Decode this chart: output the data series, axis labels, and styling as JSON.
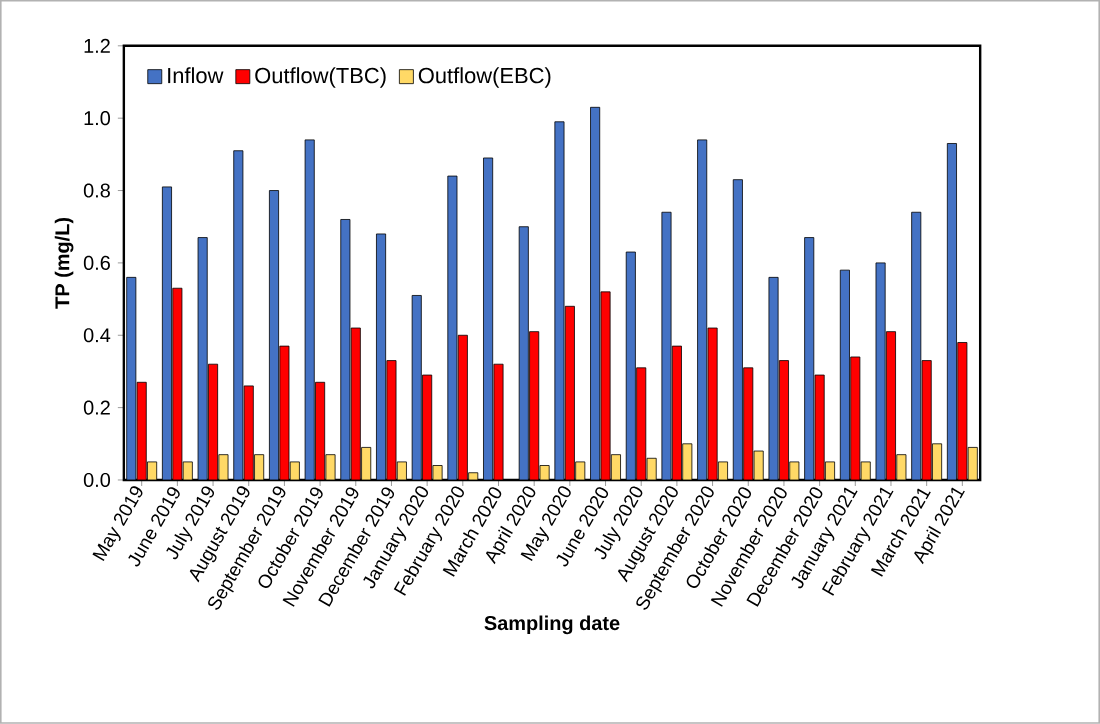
{
  "chart_data": {
    "type": "bar",
    "xlabel": "Sampling date",
    "ylabel": "TP (mg/L)",
    "categories": [
      "May 2019",
      "June 2019",
      "July 2019",
      "August 2019",
      "September 2019",
      "October 2019",
      "November 2019",
      "December 2019",
      "January 2020",
      "February 2020",
      "March 2020",
      "April 2020",
      "May 2020",
      "June 2020",
      "July 2020",
      "August 2020",
      "September 2020",
      "October 2020",
      "November 2020",
      "December 2020",
      "January 2021",
      "February 2021",
      "March 2021",
      "April 2021"
    ],
    "series": [
      {
        "name": "Inflow",
        "color": "#4472c4",
        "values": [
          0.56,
          0.81,
          0.67,
          0.91,
          0.8,
          0.94,
          0.72,
          0.68,
          0.51,
          0.84,
          0.89,
          0.7,
          0.99,
          1.03,
          0.63,
          0.74,
          0.94,
          0.83,
          0.56,
          0.67,
          0.58,
          0.6,
          0.74,
          0.93
        ]
      },
      {
        "name": "Outflow(TBC)",
        "color": "#ff0000",
        "values": [
          0.27,
          0.53,
          0.32,
          0.26,
          0.37,
          0.27,
          0.42,
          0.33,
          0.29,
          0.4,
          0.32,
          0.41,
          0.48,
          0.52,
          0.31,
          0.37,
          0.42,
          0.31,
          0.33,
          0.29,
          0.34,
          0.41,
          0.33,
          0.38
        ]
      },
      {
        "name": "Outflow(EBC)",
        "color": "#ffd966",
        "values": [
          0.05,
          0.05,
          0.07,
          0.07,
          0.05,
          0.07,
          0.09,
          0.05,
          0.04,
          0.02,
          null,
          0.04,
          0.05,
          0.07,
          0.06,
          0.1,
          0.05,
          0.08,
          0.05,
          0.05,
          0.05,
          0.07,
          0.1,
          0.09
        ]
      }
    ],
    "ylim": [
      0,
      1.2
    ],
    "yticks": [
      {
        "value": 0,
        "label": "0.0"
      },
      {
        "value": 0.2,
        "label": "0.2"
      },
      {
        "value": 0.4,
        "label": "0.4"
      },
      {
        "value": 0.6,
        "label": "0.6"
      },
      {
        "value": 0.8,
        "label": "0.8"
      },
      {
        "value": 1.0,
        "label": "1.0"
      },
      {
        "value": 1.2,
        "label": "1.2"
      }
    ],
    "legend": "top left",
    "grid": false
  }
}
